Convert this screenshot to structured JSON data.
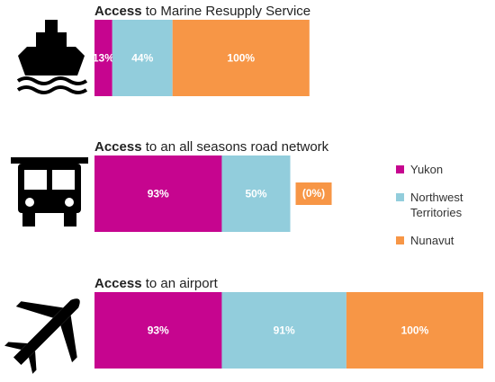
{
  "chart_data": {
    "type": "stacked-bar",
    "categories": [
      "Access to Marine Resupply Service",
      "Access to an all seasons road network",
      "Access to an airport"
    ],
    "series": [
      {
        "name": "Yukon",
        "color": "#c6058f",
        "values": [
          13,
          93,
          93
        ],
        "value_labels": [
          "13%",
          "93%",
          "93%"
        ]
      },
      {
        "name": "Northwest Territories",
        "color": "#92cddc",
        "values": [
          44,
          50,
          91
        ],
        "value_labels": [
          "44%",
          "50%",
          "91%"
        ]
      },
      {
        "name": "Nunavut",
        "color": "#f79646",
        "values": [
          100,
          0,
          100
        ],
        "value_labels": [
          "100%",
          "(0%)",
          "100%"
        ]
      }
    ],
    "legend": "right"
  }
}
